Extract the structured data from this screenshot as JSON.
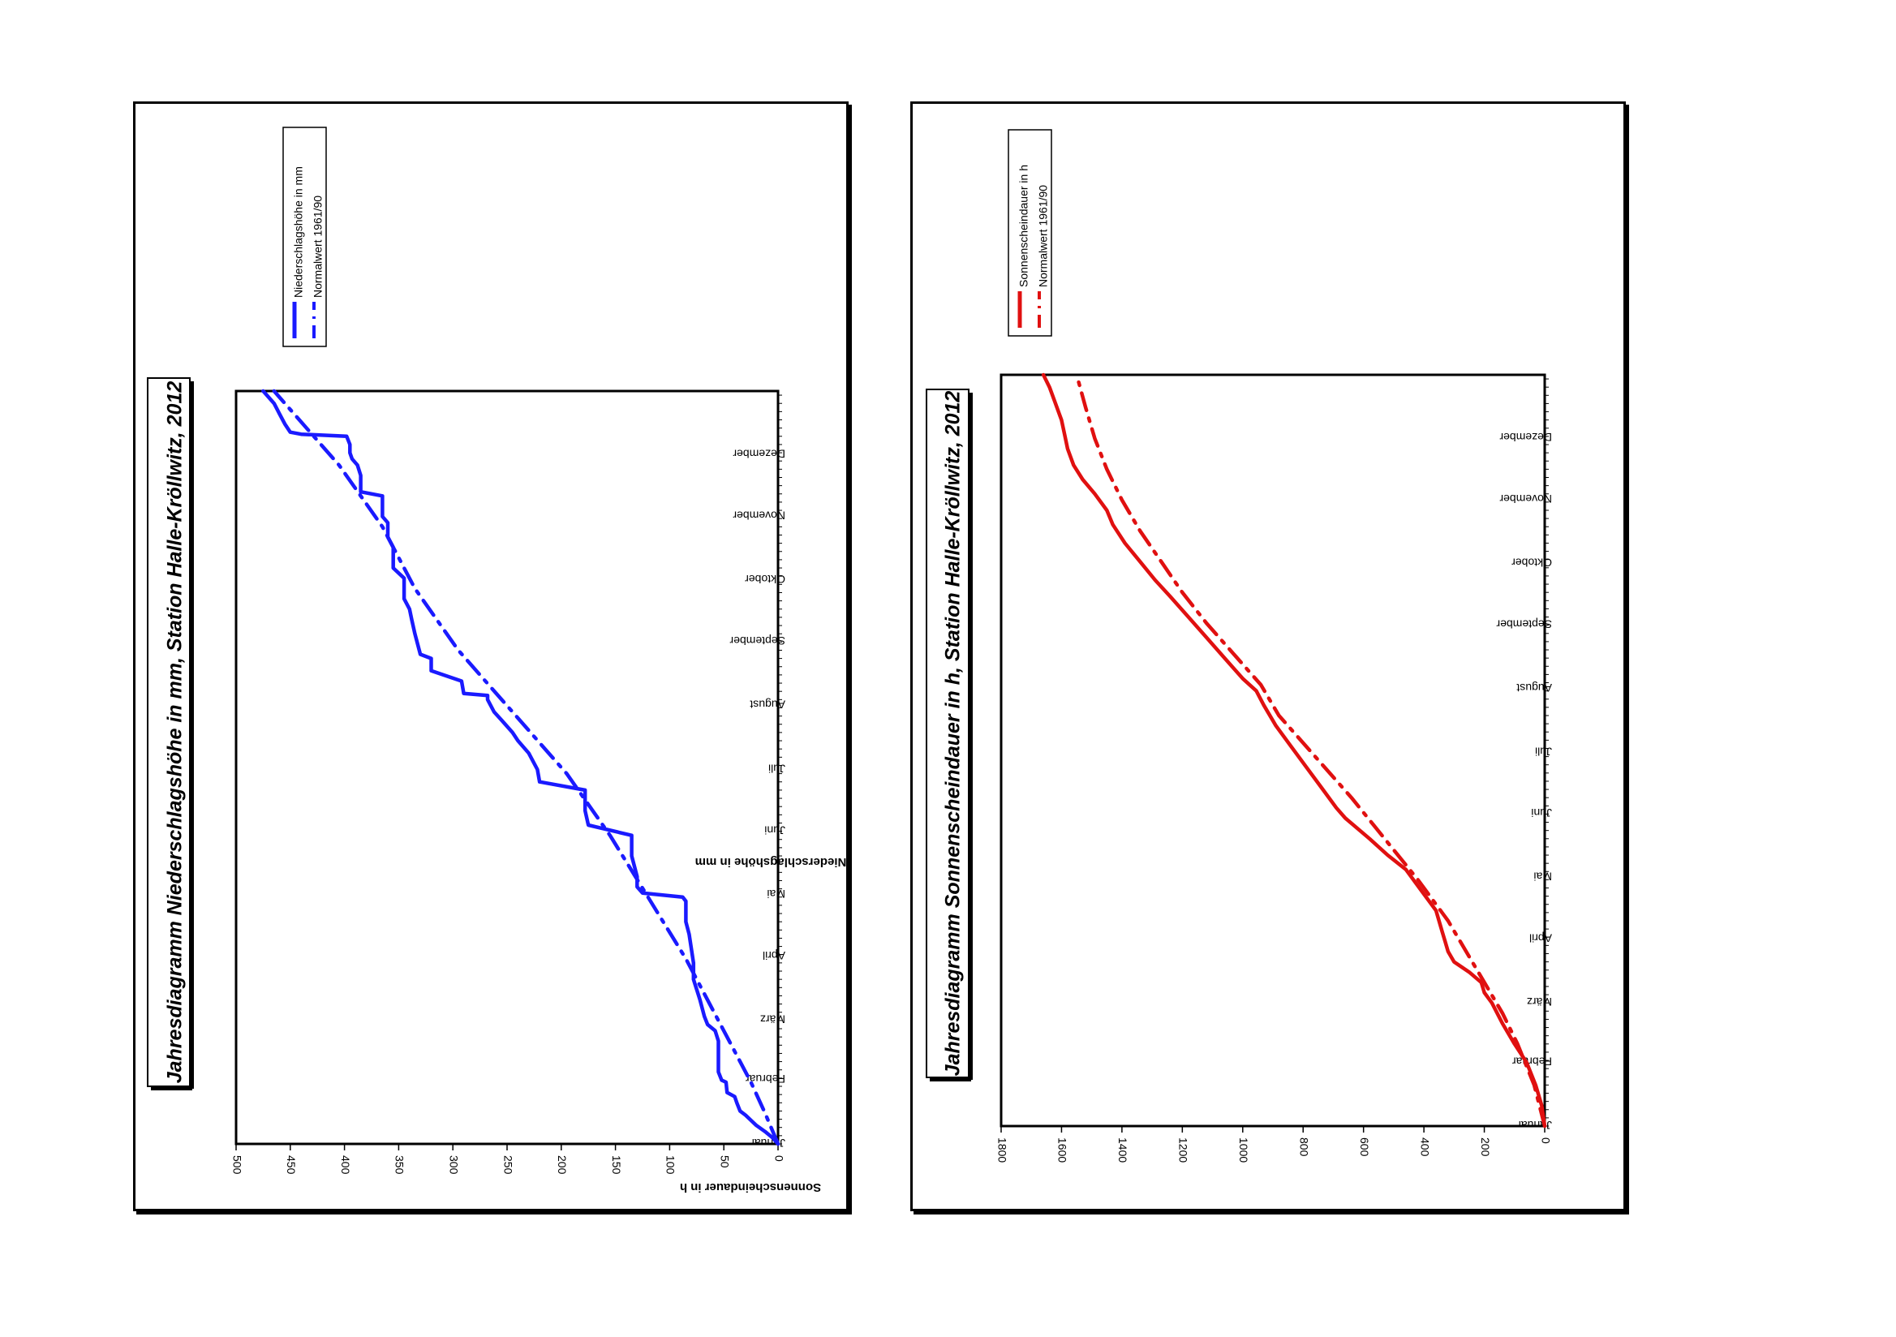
{
  "chart_data": [
    {
      "type": "line",
      "title": "Jahresdiagramm Niederschlagshöhe in mm,  Station Halle-Kröllwitz, 2012",
      "xlabel": "",
      "ylabel": "Niederschlagshöhe in mm",
      "ylim": [
        0,
        500
      ],
      "yticks": [
        0,
        50,
        100,
        150,
        200,
        250,
        300,
        350,
        400,
        450,
        500
      ],
      "months": [
        "Januar",
        "Februar",
        "März",
        "April",
        "Mai",
        "Juni",
        "Juli",
        "August",
        "September",
        "Oktober",
        "November",
        "Dezember"
      ],
      "legend": [
        "Niederschlagshöhe in mm",
        "Normalwert 1961/90"
      ],
      "colors": {
        "series": "#1a1aff",
        "frame": "#000000"
      },
      "series": [
        {
          "name": "Niederschlagshöhe in mm",
          "style": "solid",
          "points": [
            [
              0,
              0
            ],
            [
              3,
              5
            ],
            [
              6,
              12
            ],
            [
              9,
              20
            ],
            [
              14,
              30
            ],
            [
              16,
              35
            ],
            [
              20,
              38
            ],
            [
              23,
              40
            ],
            [
              25,
              47
            ],
            [
              30,
              48
            ],
            [
              31,
              52
            ],
            [
              35,
              55
            ],
            [
              50,
              55
            ],
            [
              55,
              58
            ],
            [
              58,
              65
            ],
            [
              62,
              68
            ],
            [
              66,
              70
            ],
            [
              70,
              72
            ],
            [
              75,
              75
            ],
            [
              80,
              78
            ],
            [
              88,
              78
            ],
            [
              95,
              80
            ],
            [
              102,
              82
            ],
            [
              108,
              85
            ],
            [
              118,
              85
            ],
            [
              120,
              88
            ],
            [
              122,
              125
            ],
            [
              125,
              130
            ],
            [
              130,
              130
            ],
            [
              140,
              135
            ],
            [
              150,
              135
            ],
            [
              155,
              175
            ],
            [
              162,
              178
            ],
            [
              172,
              178
            ],
            [
              176,
              220
            ],
            [
              182,
              222
            ],
            [
              190,
              230
            ],
            [
              196,
              240
            ],
            [
              200,
              245
            ],
            [
              206,
              255
            ],
            [
              210,
              262
            ],
            [
              216,
              268
            ],
            [
              218,
              268
            ],
            [
              219,
              290
            ],
            [
              225,
              292
            ],
            [
              230,
              320
            ],
            [
              236,
              320
            ],
            [
              238,
              330
            ],
            [
              248,
              335
            ],
            [
              255,
              338
            ],
            [
              260,
              340
            ],
            [
              265,
              345
            ],
            [
              275,
              345
            ],
            [
              280,
              355
            ],
            [
              290,
              355
            ],
            [
              295,
              360
            ],
            [
              298,
              360
            ],
            [
              302,
              360
            ],
            [
              305,
              365
            ],
            [
              308,
              365
            ],
            [
              315,
              365
            ],
            [
              317,
              385
            ],
            [
              320,
              385
            ],
            [
              325,
              385
            ],
            [
              330,
              388
            ],
            [
              333,
              393
            ],
            [
              336,
              395
            ],
            [
              340,
              395
            ],
            [
              344,
              398
            ],
            [
              345,
              440
            ],
            [
              346,
              450
            ],
            [
              350,
              455
            ],
            [
              355,
              460
            ],
            [
              360,
              465
            ],
            [
              366,
              475
            ]
          ]
        },
        {
          "name": "Normalwert 1961/90",
          "style": "dashdot",
          "points": [
            [
              0,
              0
            ],
            [
              15,
              12
            ],
            [
              30,
              25
            ],
            [
              60,
              55
            ],
            [
              90,
              85
            ],
            [
              120,
              120
            ],
            [
              150,
              155
            ],
            [
              180,
              195
            ],
            [
              210,
              245
            ],
            [
              240,
              295
            ],
            [
              270,
              335
            ],
            [
              300,
              365
            ],
            [
              330,
              405
            ],
            [
              360,
              455
            ],
            [
              366,
              465
            ]
          ]
        }
      ]
    },
    {
      "type": "line",
      "title": "Jahresdiagramm Sonnenscheindauer in h,  Station Halle-Kröllwitz, 2012",
      "xlabel": "",
      "ylabel": "Sonnenscheindauer in h",
      "ylim": [
        0,
        1800
      ],
      "yticks": [
        0,
        200,
        400,
        600,
        800,
        1000,
        1200,
        1400,
        1600,
        1800
      ],
      "months": [
        "Januar",
        "Februar",
        "März",
        "April",
        "Mai",
        "Juni",
        "Juli",
        "August",
        "September",
        "Oktober",
        "November",
        "Dezember"
      ],
      "legend": [
        "Sonnenscheindauer in h",
        "Normalwert 1961/90"
      ],
      "colors": {
        "series": "#e01010",
        "frame": "#000000"
      },
      "series": [
        {
          "name": "Sonnenscheindauer in h",
          "style": "solid",
          "points": [
            [
              0,
              0
            ],
            [
              10,
              10
            ],
            [
              20,
              30
            ],
            [
              31,
              60
            ],
            [
              40,
              100
            ],
            [
              50,
              140
            ],
            [
              60,
              175
            ],
            [
              65,
              200
            ],
            [
              70,
              210
            ],
            [
              75,
              250
            ],
            [
              80,
              300
            ],
            [
              85,
              320
            ],
            [
              90,
              330
            ],
            [
              95,
              340
            ],
            [
              105,
              360
            ],
            [
              115,
              410
            ],
            [
              125,
              460
            ],
            [
              132,
              520
            ],
            [
              140,
              580
            ],
            [
              150,
              660
            ],
            [
              155,
              690
            ],
            [
              165,
              740
            ],
            [
              175,
              790
            ],
            [
              185,
              840
            ],
            [
              195,
              890
            ],
            [
              205,
              930
            ],
            [
              212,
              955
            ],
            [
              218,
              1000
            ],
            [
              228,
              1060
            ],
            [
              238,
              1120
            ],
            [
              248,
              1180
            ],
            [
              258,
              1240
            ],
            [
              266,
              1290
            ],
            [
              275,
              1340
            ],
            [
              284,
              1390
            ],
            [
              293,
              1430
            ],
            [
              300,
              1450
            ],
            [
              308,
              1490
            ],
            [
              315,
              1530
            ],
            [
              322,
              1560
            ],
            [
              330,
              1580
            ],
            [
              337,
              1590
            ],
            [
              344,
              1600
            ],
            [
              352,
              1620
            ],
            [
              360,
              1640
            ],
            [
              366,
              1660
            ]
          ]
        },
        {
          "name": "Normalwert 1961/90",
          "style": "dashdot",
          "points": [
            [
              0,
              0
            ],
            [
              20,
              35
            ],
            [
              40,
              90
            ],
            [
              55,
              140
            ],
            [
              70,
              200
            ],
            [
              85,
              260
            ],
            [
              100,
              320
            ],
            [
              120,
              420
            ],
            [
              140,
              530
            ],
            [
              160,
              640
            ],
            [
              180,
              760
            ],
            [
              200,
              880
            ],
            [
              215,
              940
            ],
            [
              230,
              1030
            ],
            [
              245,
              1120
            ],
            [
              260,
              1200
            ],
            [
              275,
              1270
            ],
            [
              290,
              1340
            ],
            [
              305,
              1400
            ],
            [
              320,
              1450
            ],
            [
              335,
              1490
            ],
            [
              350,
              1520
            ],
            [
              366,
              1550
            ]
          ]
        }
      ]
    }
  ]
}
